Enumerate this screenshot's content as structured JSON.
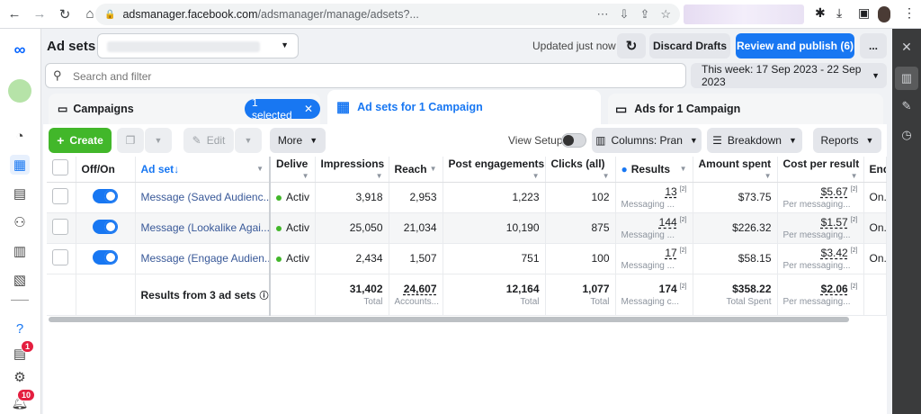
{
  "browser": {
    "url_host": "adsmanager.facebook.com",
    "url_path": "/adsmanager/manage/adsets?..."
  },
  "leftnav": {
    "badges": {
      "notifications_help": "1",
      "alerts": "10"
    }
  },
  "header": {
    "title": "Ad sets",
    "updated": "Updated just now",
    "discard": "Discard Drafts",
    "review": "Review and publish (6)",
    "more": "..."
  },
  "search": {
    "placeholder": "Search and filter",
    "date_range": "This week: 17 Sep 2023 - 22 Sep 2023"
  },
  "tabs": {
    "campaigns": "Campaigns",
    "selected_chip": "1 selected",
    "adsets": "Ad sets for 1 Campaign",
    "ads": "Ads for 1 Campaign"
  },
  "toolbar": {
    "create": "Create",
    "edit": "Edit",
    "more": "More",
    "view_setup": "View Setup",
    "columns": "Columns: Pran",
    "breakdown": "Breakdown",
    "reports": "Reports"
  },
  "table": {
    "headers": {
      "off_on": "Off/On",
      "ad_set": "Ad set",
      "delivery": "Delive",
      "impressions": "Impressions",
      "reach": "Reach",
      "post_engagements": "Post engagements",
      "clicks": "Clicks (all)",
      "results": "Results",
      "amount_spent": "Amount spent",
      "cost_per_result": "Cost per result",
      "ends": "End"
    },
    "rows": [
      {
        "name": "Message (Saved Audienc...",
        "delivery": "Activ",
        "impressions": "3,918",
        "reach": "2,953",
        "post_engagements": "1,223",
        "clicks": "102",
        "results": "13",
        "results_sup": "[2]",
        "results_sub": "Messaging ...",
        "amount_spent": "$73.75",
        "cost": "$5.67",
        "cost_sup": "[2]",
        "cost_sub": "Per messaging...",
        "ends": "On..."
      },
      {
        "name": "Message (Lookalike Agai...",
        "delivery": "Activ",
        "impressions": "25,050",
        "reach": "21,034",
        "post_engagements": "10,190",
        "clicks": "875",
        "results": "144",
        "results_sup": "[2]",
        "results_sub": "Messaging ...",
        "amount_spent": "$226.32",
        "cost": "$1.57",
        "cost_sup": "[2]",
        "cost_sub": "Per messaging...",
        "ends": "On..."
      },
      {
        "name": "Message (Engage Audien...",
        "delivery": "Activ",
        "impressions": "2,434",
        "reach": "1,507",
        "post_engagements": "751",
        "clicks": "100",
        "results": "17",
        "results_sup": "[2]",
        "results_sub": "Messaging ...",
        "amount_spent": "$58.15",
        "cost": "$3.42",
        "cost_sup": "[2]",
        "cost_sub": "Per messaging...",
        "ends": "On..."
      }
    ],
    "totals": {
      "label": "Results from 3 ad sets",
      "impressions": "31,402",
      "impressions_sub": "Total",
      "reach": "24,607",
      "reach_sub": "Accounts...",
      "post_engagements": "12,164",
      "post_engagements_sub": "Total",
      "clicks": "1,077",
      "clicks_sub": "Total",
      "results": "174",
      "results_sup": "[2]",
      "results_sub": "Messaging c...",
      "amount_spent": "$358.22",
      "amount_spent_sub": "Total Spent",
      "cost": "$2.06",
      "cost_sup": "[2]",
      "cost_sub": "Per messaging..."
    }
  },
  "colors": {
    "accent": "#1877f2",
    "create": "#42b72a",
    "badge": "#e41e3f"
  }
}
